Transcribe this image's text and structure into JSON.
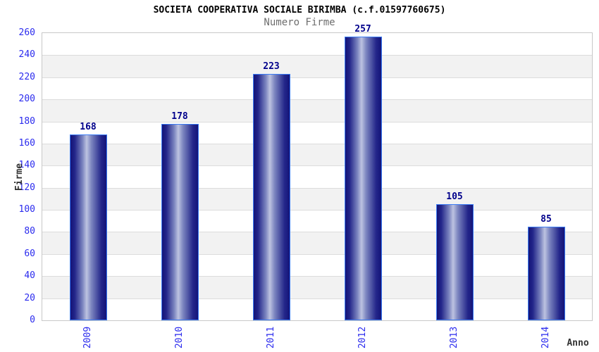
{
  "chart_data": {
    "type": "bar",
    "title": "SOCIETA COOPERATIVA SOCIALE BIRIMBA (c.f.01597760675)",
    "subtitle": "Numero Firme",
    "xlabel": "Anno",
    "ylabel": "Firme",
    "categories": [
      "2009",
      "2010",
      "2011",
      "2012",
      "2013",
      "2014"
    ],
    "values": [
      168,
      178,
      223,
      257,
      105,
      85
    ],
    "ylim": [
      0,
      260
    ],
    "ytick_step": 20,
    "ytick_labels": [
      "0",
      "20",
      "40",
      "60",
      "80",
      "100",
      "120",
      "140",
      "160",
      "180",
      "200",
      "220",
      "240",
      "260"
    ],
    "grid": "horizontal alternating bands, light gridlines",
    "legend_position": "none",
    "colors": {
      "bar_dark": "#141478",
      "bar_light": "#bdc3e1",
      "bar_border": "#3b7cf5",
      "tick_label": "#2b2bee",
      "value_label": "#00008b",
      "band_gray": "#f2f2f2",
      "band_white": "#ffffff",
      "grid_line": "#dcdcdc",
      "plot_border": "#c8c8c8",
      "title_color": "#000000",
      "subtitle_color": "#6e6e6e",
      "axis_title_color": "#333333"
    }
  }
}
